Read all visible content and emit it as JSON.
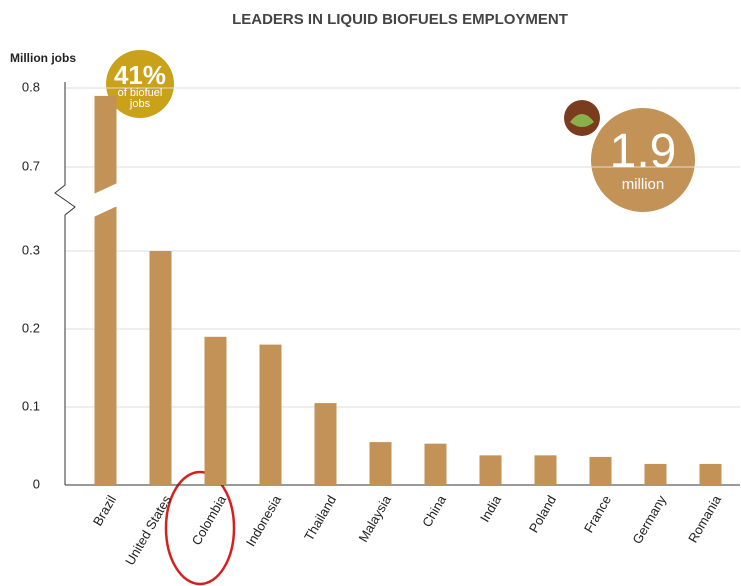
{
  "chart_data": {
    "type": "bar",
    "title": "LEADERS IN LIQUID BIOFUELS EMPLOYMENT",
    "y_label": "Million jobs",
    "categories": [
      "Brazil",
      "United States",
      "Colombia",
      "Indonesia",
      "Thailand",
      "Malaysia",
      "China",
      "India",
      "Poland",
      "France",
      "Germany",
      "Romania"
    ],
    "values": [
      0.79,
      0.3,
      0.19,
      0.18,
      0.105,
      0.055,
      0.053,
      0.038,
      0.038,
      0.036,
      0.027,
      0.027
    ],
    "color": "#c39257",
    "ylim": [
      0,
      0.8
    ],
    "axis_break": [
      0.3,
      0.7
    ],
    "yticks": [
      0,
      0.1,
      0.2,
      0.3,
      0.7,
      0.8
    ],
    "grid": true,
    "annotations": {
      "share": "41%",
      "share_text": "of biofuel jobs",
      "total": "1.9",
      "total_unit": "million"
    }
  }
}
